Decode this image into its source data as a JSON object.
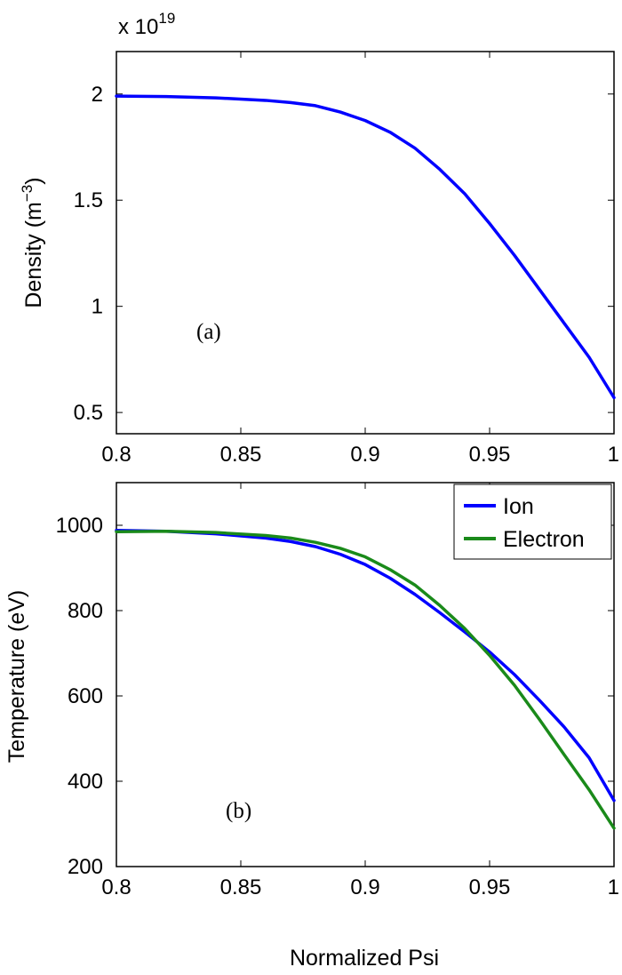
{
  "chart_data": [
    {
      "type": "line",
      "panel_label": "(a)",
      "xlabel": "",
      "ylabel": "Density (m",
      "ylabel_sup": "−3",
      "ylabel_close": ")",
      "exponent_prefix": "x 10",
      "exponent_power": "19",
      "xlim": [
        0.8,
        1.0
      ],
      "ylim": [
        0.4,
        2.2
      ],
      "xticks": [
        0.8,
        0.85,
        0.9,
        0.95,
        1.0
      ],
      "xtick_labels": [
        "0.8",
        "0.85",
        "0.9",
        "0.95",
        "1"
      ],
      "yticks": [
        0.5,
        1.0,
        1.5,
        2.0
      ],
      "ytick_labels": [
        "0.5",
        "1",
        "1.5",
        "2"
      ],
      "grid": false,
      "series": [
        {
          "color": "#0000ff",
          "x": [
            0.8,
            0.82,
            0.84,
            0.86,
            0.87,
            0.88,
            0.89,
            0.9,
            0.91,
            0.92,
            0.93,
            0.94,
            0.95,
            0.96,
            0.97,
            0.98,
            0.99,
            1.0
          ],
          "y": [
            1.99,
            1.988,
            1.982,
            1.97,
            1.96,
            1.945,
            1.915,
            1.875,
            1.82,
            1.745,
            1.645,
            1.53,
            1.39,
            1.24,
            1.08,
            0.92,
            0.76,
            0.57
          ]
        }
      ]
    },
    {
      "type": "line",
      "panel_label": "(b)",
      "xlabel": "Normalized Psi",
      "ylabel": "Temperature (eV)",
      "xlim": [
        0.8,
        1.0
      ],
      "ylim": [
        200,
        1100
      ],
      "xticks": [
        0.8,
        0.85,
        0.9,
        0.95,
        1.0
      ],
      "xtick_labels": [
        "0.8",
        "0.85",
        "0.9",
        "0.95",
        "1"
      ],
      "yticks": [
        200,
        400,
        600,
        800,
        1000
      ],
      "ytick_labels": [
        "200",
        "400",
        "600",
        "800",
        "1000"
      ],
      "grid": false,
      "legend_position": "top-right",
      "series": [
        {
          "name": "Ion",
          "color": "#0000ff",
          "x": [
            0.8,
            0.82,
            0.84,
            0.86,
            0.87,
            0.88,
            0.89,
            0.9,
            0.91,
            0.92,
            0.93,
            0.94,
            0.95,
            0.96,
            0.97,
            0.98,
            0.99,
            1.0
          ],
          "y": [
            988,
            986,
            980,
            970,
            962,
            950,
            932,
            908,
            876,
            838,
            795,
            750,
            703,
            650,
            590,
            527,
            455,
            355
          ]
        },
        {
          "name": "Electron",
          "color": "#1a8a1a",
          "x": [
            0.8,
            0.82,
            0.84,
            0.86,
            0.87,
            0.88,
            0.89,
            0.9,
            0.91,
            0.92,
            0.93,
            0.94,
            0.95,
            0.96,
            0.97,
            0.98,
            0.99,
            1.0
          ],
          "y": [
            985,
            986,
            983,
            976,
            970,
            960,
            946,
            926,
            896,
            860,
            812,
            758,
            695,
            625,
            545,
            462,
            380,
            290
          ]
        }
      ]
    }
  ]
}
